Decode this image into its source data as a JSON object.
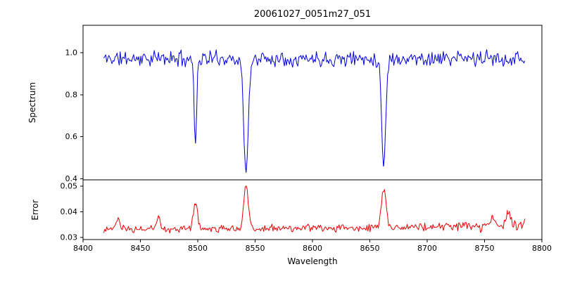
{
  "figure": {
    "title": "20061027_0051m27_051",
    "xlabel": "Wavelength",
    "background": "#ffffff",
    "axes_color": "#000000"
  },
  "xticks": [
    8400,
    8450,
    8500,
    8550,
    8600,
    8650,
    8700,
    8750,
    8800
  ],
  "xtick_labels": [
    "8400",
    "8450",
    "8500",
    "8550",
    "8600",
    "8650",
    "8700",
    "8750",
    "8800"
  ],
  "chart_data": [
    {
      "type": "line",
      "name": "spectrum",
      "ylabel": "Spectrum",
      "color": "#0000e0",
      "xlim": [
        8400,
        8800
      ],
      "ylim": [
        0.395,
        1.13
      ],
      "yticks": [
        0.4,
        0.6,
        0.8,
        1.0
      ],
      "ytick_labels": [
        "0.4",
        "0.6",
        "0.8",
        "1.0"
      ],
      "x_start": 8418,
      "x_end": 8786,
      "sample_step": 0.9,
      "continuum": 0.972,
      "noise_amplitude": 0.045,
      "seed": 11,
      "grid": false,
      "legend": null,
      "absorption_lines": [
        {
          "center": 8498.0,
          "min_flux": 0.57,
          "sigma": 1.1
        },
        {
          "center": 8542.1,
          "min_flux": 0.43,
          "sigma": 2.0
        },
        {
          "center": 8662.1,
          "min_flux": 0.47,
          "sigma": 1.8
        }
      ]
    },
    {
      "type": "line",
      "name": "error",
      "ylabel": "Error",
      "color": "#ee0000",
      "xlim": [
        8400,
        8800
      ],
      "ylim": [
        0.0292,
        0.0525
      ],
      "yticks": [
        0.03,
        0.04,
        0.05
      ],
      "ytick_labels": [
        "0.03",
        "0.04",
        "0.05"
      ],
      "x_start": 8418,
      "x_end": 8786,
      "sample_step": 0.9,
      "baseline": 0.0333,
      "baseline_right_rise": 0.0014,
      "noise_amplitude": 0.0018,
      "right_noise_boost_from": 8745,
      "right_noise_boost_factor": 1.8,
      "seed": 23,
      "grid": false,
      "legend": null,
      "peaks": [
        {
          "center": 8430.0,
          "amplitude": 0.0035,
          "sigma": 1.5
        },
        {
          "center": 8466.0,
          "amplitude": 0.005,
          "sigma": 1.5
        },
        {
          "center": 8498.0,
          "amplitude": 0.0105,
          "sigma": 1.8
        },
        {
          "center": 8542.1,
          "amplitude": 0.017,
          "sigma": 2.0
        },
        {
          "center": 8662.1,
          "amplitude": 0.0155,
          "sigma": 2.0
        },
        {
          "center": 8757.0,
          "amplitude": 0.004,
          "sigma": 2.0
        },
        {
          "center": 8770.0,
          "amplitude": 0.005,
          "sigma": 1.5
        }
      ]
    }
  ]
}
